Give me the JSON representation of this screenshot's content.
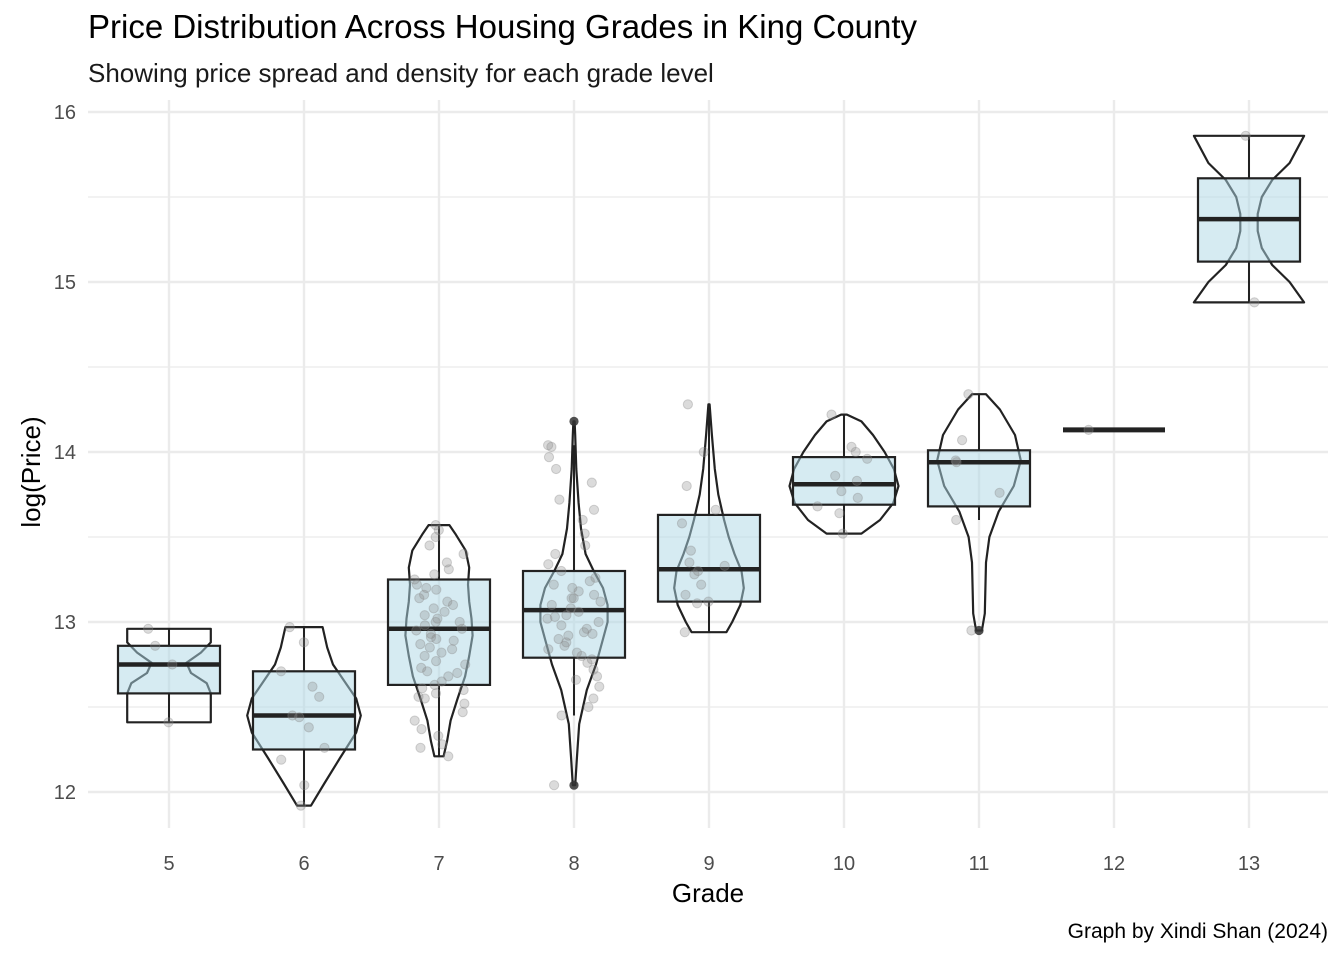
{
  "chart_data": {
    "type": "violin+box+jitter",
    "title": "Price Distribution Across Housing Grades in King County",
    "subtitle": "Showing price spread and density for each grade level",
    "caption": "Graph by Xindi Shan (2024)",
    "xlabel": "Grade",
    "ylabel": "log(Price)",
    "categories": [
      "5",
      "6",
      "7",
      "8",
      "9",
      "10",
      "11",
      "12",
      "13"
    ],
    "y_ticks": [
      "12",
      "13",
      "14",
      "15",
      "16"
    ],
    "ylim": [
      11.8,
      16.05
    ],
    "grid": true,
    "colors": {
      "box_fill": "#add8e6",
      "outline": "#222222",
      "points": "#888888",
      "grid": "#ebebeb"
    },
    "boxes": [
      {
        "grade": "5",
        "lower_whisker": 12.41,
        "q1": 12.58,
        "median": 12.75,
        "q3": 12.86,
        "upper_whisker": 12.96
      },
      {
        "grade": "6",
        "lower_whisker": 11.92,
        "q1": 12.25,
        "median": 12.45,
        "q3": 12.71,
        "upper_whisker": 12.97
      },
      {
        "grade": "7",
        "lower_whisker": 12.21,
        "q1": 12.63,
        "median": 12.96,
        "q3": 13.25,
        "upper_whisker": 13.57
      },
      {
        "grade": "8",
        "lower_whisker": 12.45,
        "q1": 12.79,
        "median": 13.07,
        "q3": 13.3,
        "upper_whisker": 14.04
      },
      {
        "grade": "9",
        "lower_whisker": 12.94,
        "q1": 13.12,
        "median": 13.31,
        "q3": 13.63,
        "upper_whisker": 14.28
      },
      {
        "grade": "10",
        "lower_whisker": 13.52,
        "q1": 13.69,
        "median": 13.81,
        "q3": 13.97,
        "upper_whisker": 14.22
      },
      {
        "grade": "11",
        "lower_whisker": 13.6,
        "q1": 13.68,
        "median": 13.94,
        "q3": 14.01,
        "upper_whisker": 14.34
      },
      {
        "grade": "12",
        "lower_whisker": 14.13,
        "q1": 14.13,
        "median": 14.13,
        "q3": 14.13,
        "upper_whisker": 14.13
      },
      {
        "grade": "13",
        "lower_whisker": 14.88,
        "q1": 15.12,
        "median": 15.37,
        "q3": 15.61,
        "upper_whisker": 15.86
      }
    ],
    "outliers": [
      {
        "grade": "8",
        "value": 12.04
      },
      {
        "grade": "8",
        "value": 14.18
      },
      {
        "grade": "11",
        "value": 12.95
      }
    ],
    "violins": [
      {
        "grade": "5",
        "profile": [
          [
            12.41,
            0.72
          ],
          [
            12.5,
            0.72
          ],
          [
            12.58,
            0.72
          ],
          [
            12.64,
            0.65
          ],
          [
            12.7,
            0.38
          ],
          [
            12.76,
            0.3
          ],
          [
            12.82,
            0.55
          ],
          [
            12.88,
            0.72
          ],
          [
            12.96,
            0.72
          ]
        ]
      },
      {
        "grade": "6",
        "profile": [
          [
            11.92,
            0.12
          ],
          [
            12.05,
            0.35
          ],
          [
            12.2,
            0.62
          ],
          [
            12.35,
            0.9
          ],
          [
            12.45,
            0.98
          ],
          [
            12.55,
            0.9
          ],
          [
            12.65,
            0.7
          ],
          [
            12.75,
            0.5
          ],
          [
            12.85,
            0.4
          ],
          [
            12.97,
            0.32
          ]
        ]
      },
      {
        "grade": "7",
        "profile": [
          [
            12.21,
            0.08
          ],
          [
            12.3,
            0.14
          ],
          [
            12.42,
            0.2
          ],
          [
            12.55,
            0.32
          ],
          [
            12.68,
            0.45
          ],
          [
            12.8,
            0.52
          ],
          [
            12.92,
            0.58
          ],
          [
            13.02,
            0.56
          ],
          [
            13.12,
            0.52
          ],
          [
            13.22,
            0.5
          ],
          [
            13.32,
            0.52
          ],
          [
            13.42,
            0.46
          ],
          [
            13.52,
            0.28
          ],
          [
            13.57,
            0.18
          ]
        ]
      },
      {
        "grade": "8",
        "profile": [
          [
            12.04,
            0.02
          ],
          [
            12.2,
            0.05
          ],
          [
            12.4,
            0.09
          ],
          [
            12.6,
            0.22
          ],
          [
            12.75,
            0.38
          ],
          [
            12.9,
            0.5
          ],
          [
            13.0,
            0.58
          ],
          [
            13.1,
            0.58
          ],
          [
            13.2,
            0.5
          ],
          [
            13.3,
            0.34
          ],
          [
            13.4,
            0.2
          ],
          [
            13.55,
            0.12
          ],
          [
            13.7,
            0.08
          ],
          [
            13.9,
            0.04
          ],
          [
            14.1,
            0.02
          ],
          [
            14.18,
            0.01
          ]
        ]
      },
      {
        "grade": "9",
        "profile": [
          [
            12.94,
            0.3
          ],
          [
            13.0,
            0.4
          ],
          [
            13.1,
            0.54
          ],
          [
            13.2,
            0.6
          ],
          [
            13.3,
            0.56
          ],
          [
            13.4,
            0.44
          ],
          [
            13.5,
            0.34
          ],
          [
            13.6,
            0.26
          ],
          [
            13.75,
            0.16
          ],
          [
            13.9,
            0.1
          ],
          [
            14.1,
            0.05
          ],
          [
            14.28,
            0.01
          ]
        ]
      },
      {
        "grade": "10",
        "profile": [
          [
            13.52,
            0.3
          ],
          [
            13.6,
            0.62
          ],
          [
            13.7,
            0.85
          ],
          [
            13.8,
            0.94
          ],
          [
            13.9,
            0.86
          ],
          [
            14.0,
            0.7
          ],
          [
            14.1,
            0.5
          ],
          [
            14.18,
            0.3
          ],
          [
            14.22,
            0.05
          ]
        ]
      },
      {
        "grade": "11",
        "profile": [
          [
            12.95,
            0.05
          ],
          [
            13.05,
            0.1
          ],
          [
            13.2,
            0.11
          ],
          [
            13.35,
            0.12
          ],
          [
            13.5,
            0.18
          ],
          [
            13.65,
            0.34
          ],
          [
            13.8,
            0.6
          ],
          [
            13.95,
            0.72
          ],
          [
            14.1,
            0.62
          ],
          [
            14.25,
            0.36
          ],
          [
            14.34,
            0.12
          ]
        ]
      },
      {
        "grade": "13",
        "profile": [
          [
            14.88,
            0.95
          ],
          [
            15.0,
            0.7
          ],
          [
            15.1,
            0.4
          ],
          [
            15.2,
            0.22
          ],
          [
            15.3,
            0.15
          ],
          [
            15.4,
            0.15
          ],
          [
            15.5,
            0.22
          ],
          [
            15.6,
            0.4
          ],
          [
            15.7,
            0.7
          ],
          [
            15.86,
            0.95
          ]
        ]
      }
    ],
    "jitter": [
      {
        "grade": "5",
        "values": [
          12.41,
          12.75,
          12.96,
          12.86
        ]
      },
      {
        "grade": "6",
        "values": [
          11.92,
          12.04,
          12.19,
          12.26,
          12.38,
          12.44,
          12.45,
          12.56,
          12.62,
          12.71,
          12.88,
          12.97
        ]
      },
      {
        "grade": "7",
        "values": [
          12.21,
          12.26,
          12.28,
          12.33,
          12.37,
          12.42,
          12.47,
          12.52,
          12.56,
          12.58,
          12.6,
          12.61,
          12.63,
          12.65,
          12.68,
          12.71,
          12.73,
          12.75,
          12.77,
          12.8,
          12.82,
          12.85,
          12.87,
          12.89,
          12.91,
          12.93,
          12.95,
          12.96,
          12.98,
          13.0,
          13.02,
          13.04,
          13.06,
          13.08,
          13.1,
          13.12,
          13.14,
          13.16,
          13.19,
          13.22,
          13.25,
          13.28,
          13.31,
          13.35,
          13.4,
          13.45,
          13.5,
          13.54,
          13.57,
          12.7,
          12.9,
          13.0,
          13.2,
          12.55,
          12.84
        ]
      },
      {
        "grade": "8",
        "values": [
          12.04,
          12.45,
          12.5,
          12.55,
          12.62,
          12.68,
          12.72,
          12.76,
          12.8,
          12.82,
          12.84,
          12.86,
          12.88,
          12.9,
          12.92,
          12.94,
          12.96,
          12.98,
          13.0,
          13.02,
          13.04,
          13.06,
          13.08,
          13.1,
          13.12,
          13.14,
          13.16,
          13.18,
          13.2,
          13.22,
          13.24,
          13.26,
          13.3,
          13.34,
          13.4,
          13.45,
          13.52,
          13.6,
          13.66,
          13.72,
          13.82,
          13.9,
          13.97,
          14.03,
          14.04,
          12.66,
          12.78,
          12.93,
          13.03,
          13.14
        ]
      },
      {
        "grade": "9",
        "values": [
          12.94,
          13.11,
          13.12,
          13.16,
          13.22,
          13.28,
          13.3,
          13.33,
          13.35,
          13.42,
          13.58,
          13.66,
          13.8,
          14.0,
          14.28
        ]
      },
      {
        "grade": "10",
        "values": [
          13.52,
          13.64,
          13.68,
          13.73,
          13.77,
          13.83,
          13.86,
          13.96,
          14.0,
          14.03,
          14.22
        ]
      },
      {
        "grade": "11",
        "values": [
          12.95,
          13.6,
          13.76,
          13.94,
          13.95,
          14.07,
          14.34
        ]
      },
      {
        "grade": "12",
        "values": [
          14.13
        ]
      },
      {
        "grade": "13",
        "values": [
          14.88,
          15.86
        ]
      }
    ]
  }
}
